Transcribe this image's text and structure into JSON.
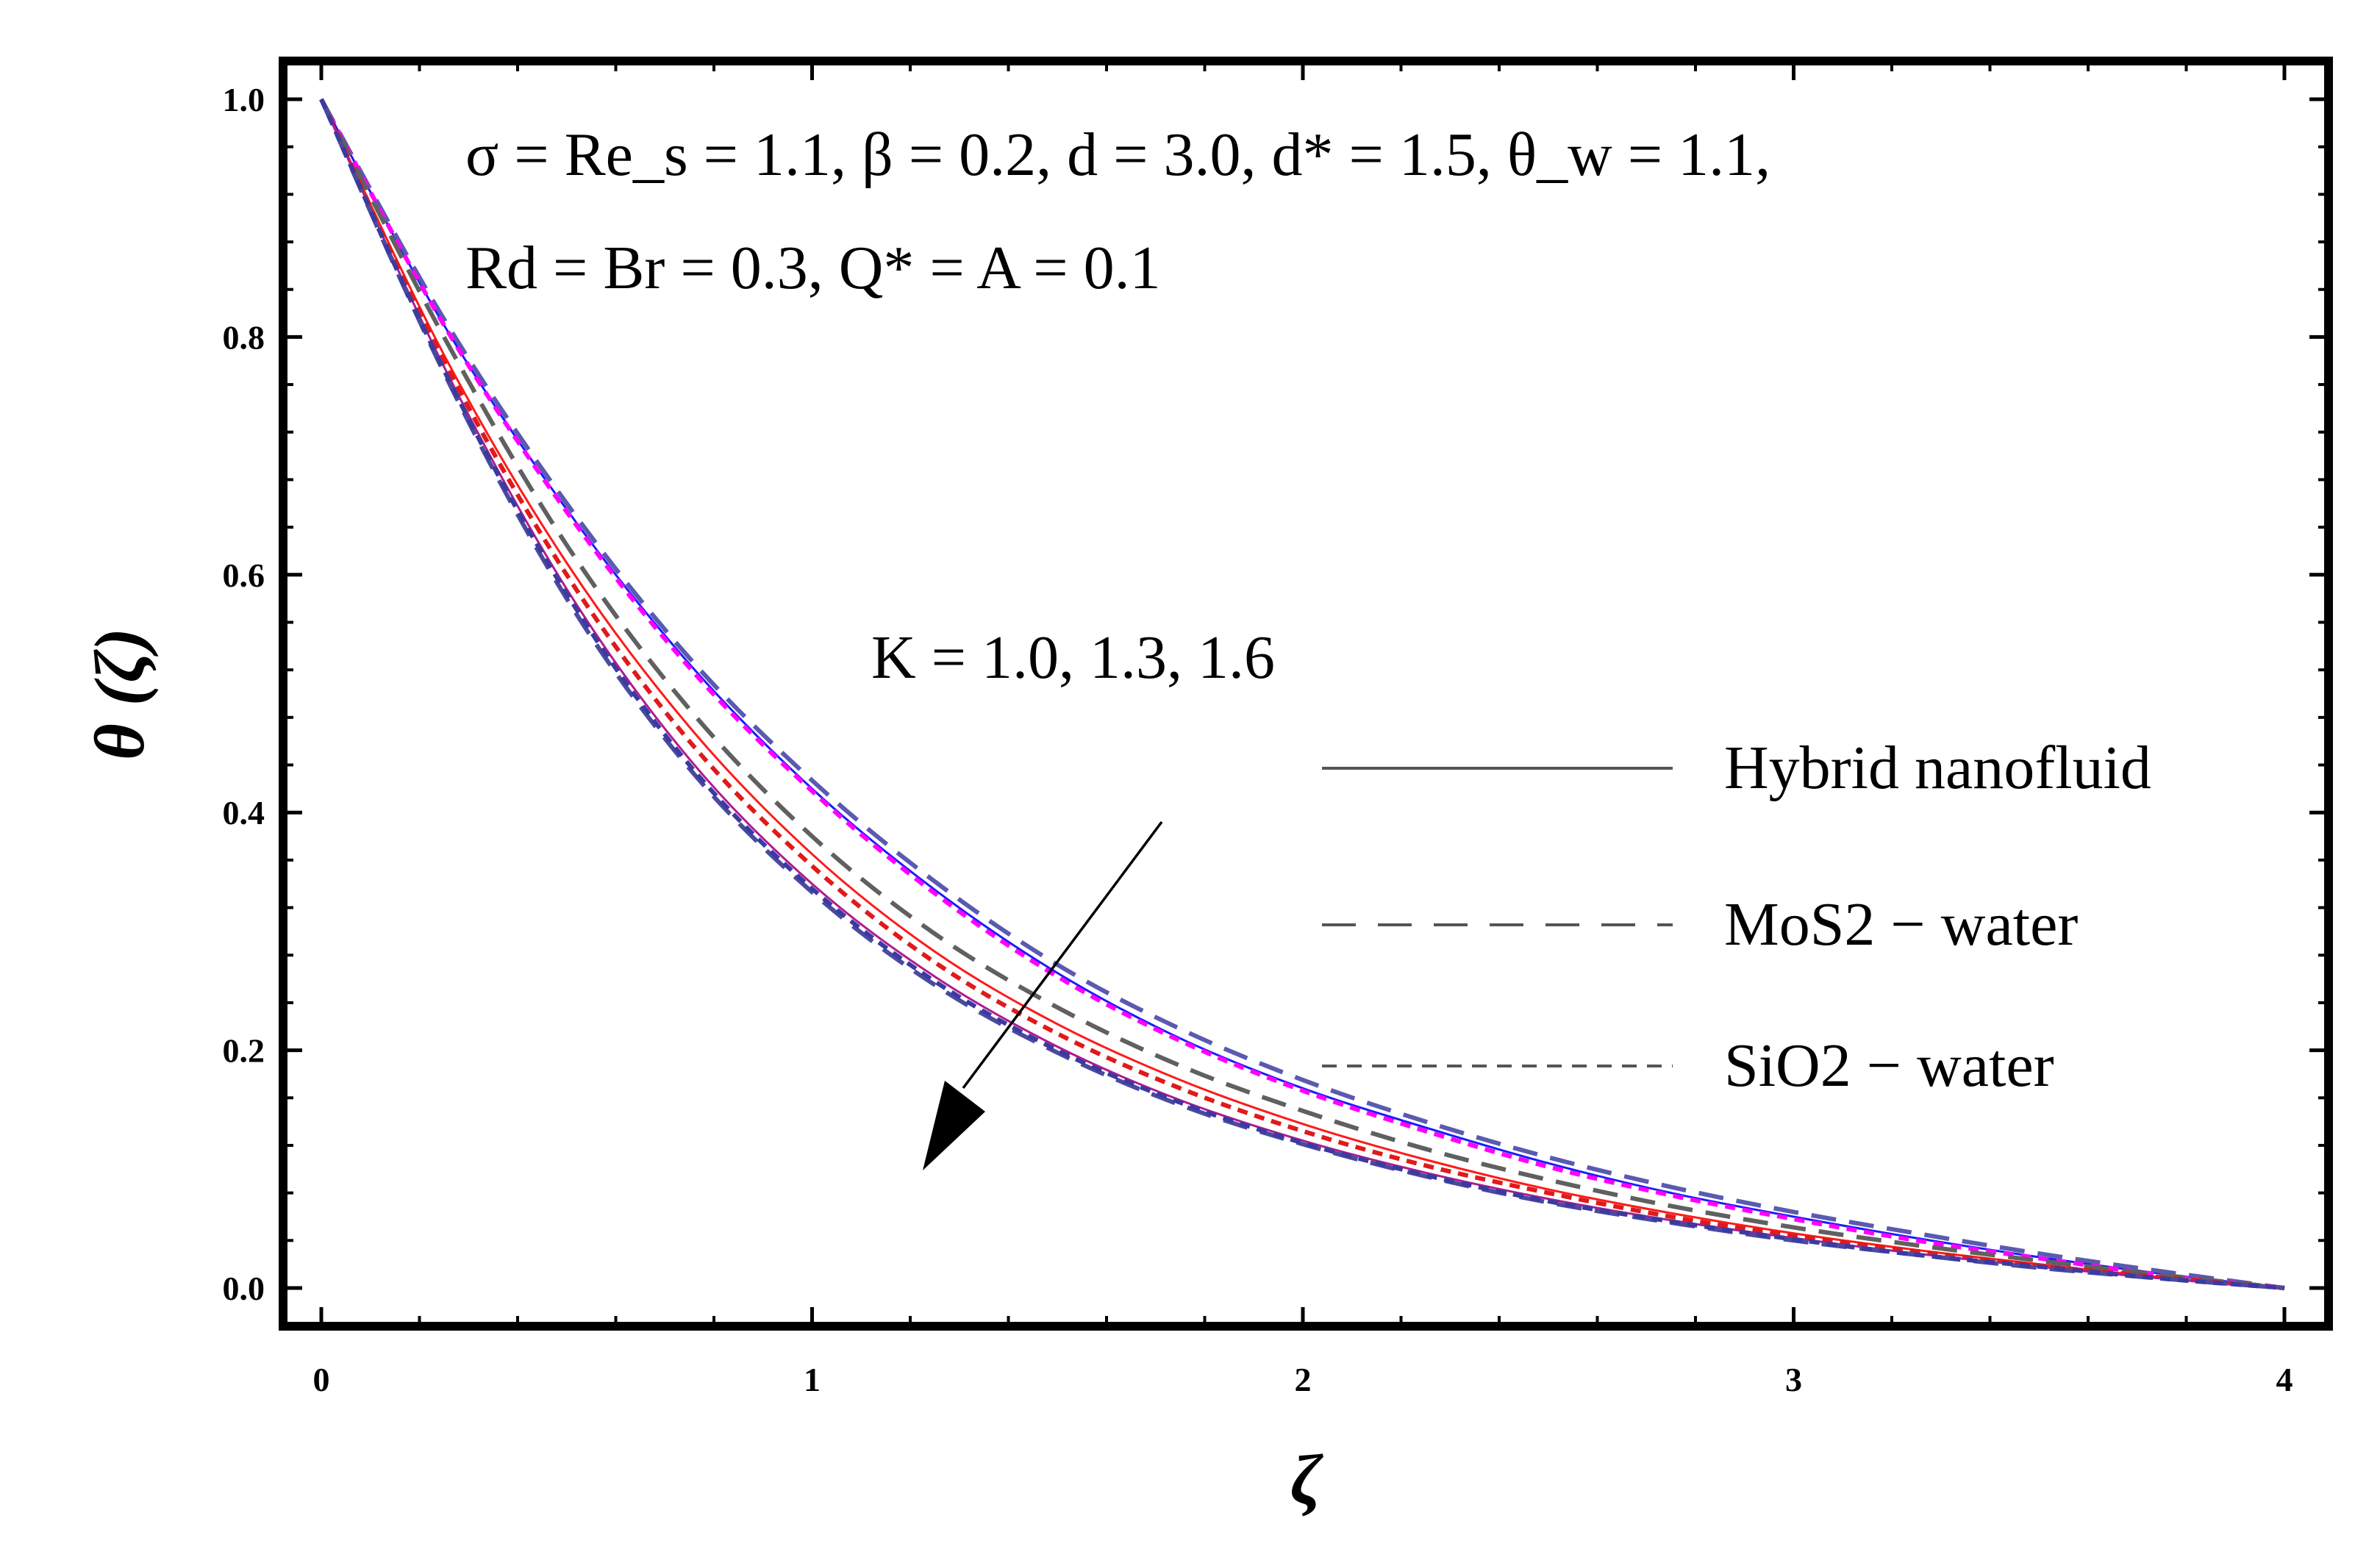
{
  "chart_data": {
    "type": "line",
    "xlabel": "ζ",
    "ylabel": "θ (ζ)",
    "xlim": [
      0,
      4
    ],
    "ylim": [
      0,
      1.0
    ],
    "x_ticks": [
      "0",
      "1",
      "2",
      "3",
      "4"
    ],
    "y_ticks": [
      "0.0",
      "0.2",
      "0.4",
      "0.6",
      "0.8",
      "1.0"
    ],
    "grid": false,
    "annotation_line1": "σ = Re_s = 1.1, β = 0.2, d = 3.0, d* = 1.5, θ_w = 1.1,",
    "annotation_line2": "Rd = Br = 0.3, Q* = A = 0.1",
    "arrow_label": "K = 1.0, 1.3, 1.6",
    "legend": [
      {
        "label": "Hybrid nanofluid",
        "style": "solid"
      },
      {
        "label": "MoS2 − water",
        "style": "long-dash"
      },
      {
        "label": "SiO2 − water",
        "style": "short-dash"
      }
    ],
    "legend_placement": "center-right",
    "x": [
      0,
      0.25,
      0.5,
      0.75,
      1.0,
      1.25,
      1.5,
      1.75,
      2.0,
      2.25,
      2.5,
      2.75,
      3.0,
      3.25,
      3.5,
      3.75,
      4.0
    ],
    "series": [
      {
        "color": "#1a1aff",
        "style": "solid",
        "values": [
          1.0,
          0.81,
          0.655,
          0.525,
          0.42,
          0.335,
          0.265,
          0.21,
          0.168,
          0.135,
          0.105,
          0.08,
          0.06,
          0.042,
          0.026,
          0.012,
          0.0
        ]
      },
      {
        "color": "#5a5ab0",
        "style": "long-dash",
        "values": [
          1.0,
          0.815,
          0.66,
          0.53,
          0.427,
          0.342,
          0.272,
          0.218,
          0.175,
          0.14,
          0.11,
          0.085,
          0.064,
          0.046,
          0.029,
          0.014,
          0.0
        ]
      },
      {
        "color": "#ff00ff",
        "style": "short-dash",
        "values": [
          1.0,
          0.81,
          0.653,
          0.522,
          0.418,
          0.332,
          0.262,
          0.208,
          0.166,
          0.132,
          0.102,
          0.078,
          0.058,
          0.04,
          0.025,
          0.011,
          0.0
        ]
      },
      {
        "color": "#ff1a1a",
        "style": "solid",
        "values": [
          1.0,
          0.785,
          0.61,
          0.472,
          0.365,
          0.283,
          0.222,
          0.175,
          0.138,
          0.108,
          0.083,
          0.063,
          0.046,
          0.032,
          0.02,
          0.009,
          0.0
        ]
      },
      {
        "color": "#606060",
        "style": "long-dash",
        "values": [
          1.0,
          0.8,
          0.625,
          0.487,
          0.38,
          0.298,
          0.236,
          0.187,
          0.149,
          0.117,
          0.091,
          0.069,
          0.051,
          0.036,
          0.023,
          0.011,
          0.0
        ]
      },
      {
        "color": "#e01a1a",
        "style": "short-dash",
        "values": [
          1.0,
          0.78,
          0.6,
          0.46,
          0.355,
          0.274,
          0.214,
          0.168,
          0.132,
          0.103,
          0.08,
          0.06,
          0.044,
          0.031,
          0.019,
          0.009,
          0.0
        ]
      },
      {
        "color": "#b01a90",
        "style": "solid",
        "values": [
          1.0,
          0.775,
          0.588,
          0.445,
          0.34,
          0.262,
          0.203,
          0.158,
          0.124,
          0.097,
          0.075,
          0.057,
          0.042,
          0.029,
          0.018,
          0.008,
          0.0
        ]
      },
      {
        "color": "#4a4aa0",
        "style": "long-dash",
        "values": [
          1.0,
          0.77,
          0.58,
          0.437,
          0.333,
          0.255,
          0.198,
          0.154,
          0.121,
          0.094,
          0.072,
          0.055,
          0.04,
          0.028,
          0.017,
          0.008,
          0.0
        ]
      },
      {
        "color": "#3a3aa0",
        "style": "short-dash",
        "values": [
          1.0,
          0.772,
          0.584,
          0.44,
          0.336,
          0.258,
          0.2,
          0.156,
          0.122,
          0.095,
          0.073,
          0.056,
          0.041,
          0.028,
          0.018,
          0.008,
          0.0
        ]
      }
    ]
  }
}
